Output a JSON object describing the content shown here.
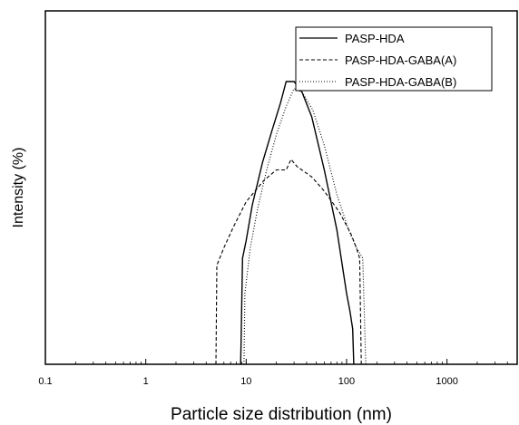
{
  "chart_data": {
    "type": "line",
    "xscale": "log",
    "xlim": [
      0.1,
      5000
    ],
    "ylim": [
      0,
      100
    ],
    "xticks": [
      0.1,
      1,
      10,
      100,
      1000
    ],
    "xtick_labels": [
      "0.1",
      "1",
      "10",
      "100",
      "1000"
    ],
    "xlabel": "Particle size distribution (nm)",
    "ylabel": "Intensity (%)",
    "grid": false,
    "legend_position": "top-right",
    "series": [
      {
        "name": "PASP-HDA",
        "style": "solid",
        "color": "#000000",
        "points": [
          [
            8.8,
            0
          ],
          [
            8.9,
            6
          ],
          [
            9.2,
            30
          ],
          [
            10.0,
            35
          ],
          [
            11.5,
            45
          ],
          [
            14.5,
            57
          ],
          [
            18.0,
            66
          ],
          [
            22.0,
            74
          ],
          [
            25.0,
            80
          ],
          [
            30.0,
            80
          ],
          [
            36.0,
            77
          ],
          [
            45.0,
            70
          ],
          [
            60.0,
            55
          ],
          [
            80.0,
            38
          ],
          [
            100.0,
            20
          ],
          [
            108.0,
            15
          ],
          [
            115.0,
            10
          ],
          [
            118.0,
            0
          ]
        ]
      },
      {
        "name": "PASP-HDA-GABA(A)",
        "style": "dashed",
        "color": "#000000",
        "points": [
          [
            5.0,
            0
          ],
          [
            5.1,
            28
          ],
          [
            6.0,
            33
          ],
          [
            7.5,
            39
          ],
          [
            10.0,
            46
          ],
          [
            15.0,
            52
          ],
          [
            20.0,
            55
          ],
          [
            25.0,
            55
          ],
          [
            28.0,
            58
          ],
          [
            32.0,
            56
          ],
          [
            45.0,
            53
          ],
          [
            60.0,
            49
          ],
          [
            85.0,
            43
          ],
          [
            110.0,
            37
          ],
          [
            125.0,
            33
          ],
          [
            135.0,
            30
          ],
          [
            140.0,
            0
          ]
        ]
      },
      {
        "name": "PASP-HDA-GABA(B)",
        "style": "dotted",
        "color": "#000000",
        "points": [
          [
            9.5,
            0
          ],
          [
            9.7,
            20
          ],
          [
            11.0,
            33
          ],
          [
            13.0,
            44
          ],
          [
            16.0,
            55
          ],
          [
            20.0,
            65
          ],
          [
            25.0,
            73
          ],
          [
            30.0,
            78
          ],
          [
            36.0,
            77
          ],
          [
            46.0,
            72
          ],
          [
            60.0,
            62
          ],
          [
            80.0,
            48
          ],
          [
            105.0,
            38
          ],
          [
            125.0,
            33
          ],
          [
            145.0,
            30
          ],
          [
            155.0,
            0
          ]
        ]
      }
    ]
  }
}
